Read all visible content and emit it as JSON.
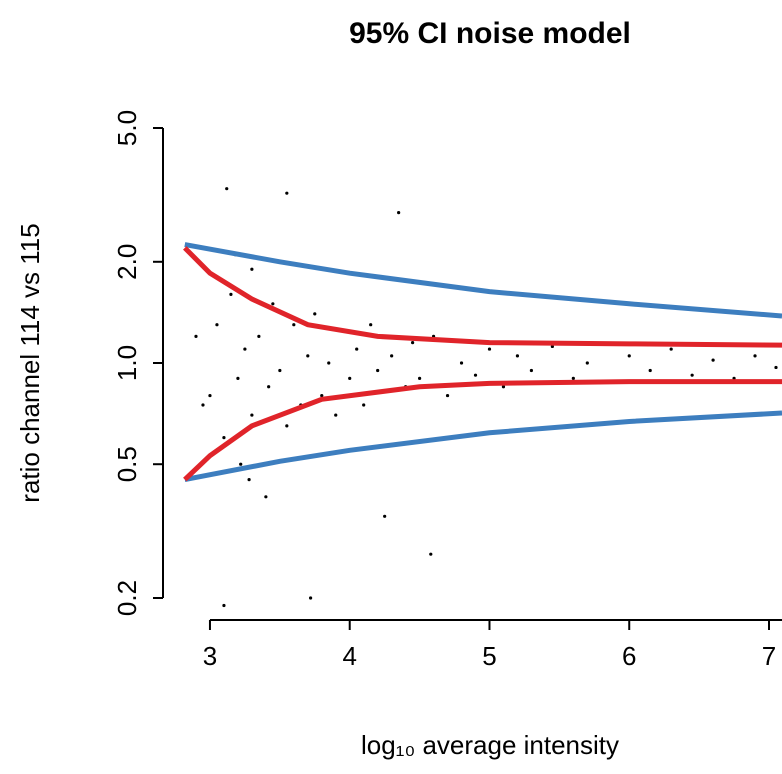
{
  "chart_data": {
    "type": "scatter",
    "title": "95% CI noise model",
    "xlabel": "log₁₀ average intensity",
    "ylabel": "ratio channel 114 vs 115",
    "xlim": [
      2.664,
      7.093
    ],
    "ylim": [
      0.2,
      5
    ],
    "ylog": true,
    "xticks": [
      3,
      4,
      5,
      6,
      7
    ],
    "yticks": [
      0.2,
      0.5,
      {
        "value": 1,
        "label": "1.0"
      },
      {
        "value": 2,
        "label": "2.0"
      },
      {
        "value": 5,
        "label": "5.0"
      }
    ],
    "points": {
      "color": "#000000",
      "x": [
        3.0,
        3.05,
        3.1,
        3.12,
        3.15,
        3.2,
        3.22,
        3.25,
        3.3,
        3.3,
        3.35,
        3.4,
        3.42,
        3.45,
        3.5,
        3.55,
        3.55,
        3.6,
        3.65,
        3.7,
        3.72,
        3.75,
        3.8,
        3.85,
        3.9,
        3.95,
        4.0,
        4.05,
        4.1,
        4.15,
        4.2,
        4.25,
        4.3,
        4.35,
        4.4,
        4.45,
        4.5,
        4.6,
        4.7,
        4.8,
        4.9,
        5.0,
        5.1,
        5.2,
        5.3,
        5.45,
        5.6,
        5.7,
        5.85,
        6.0,
        6.15,
        6.3,
        6.45,
        6.6,
        6.75,
        6.9,
        7.05,
        2.9,
        2.95,
        3.18,
        3.28,
        4.58,
        3.1
      ],
      "y": [
        0.8,
        1.3,
        0.6,
        3.3,
        1.6,
        0.9,
        0.5,
        1.1,
        0.7,
        1.9,
        1.2,
        0.4,
        0.85,
        1.5,
        0.95,
        3.2,
        0.65,
        1.3,
        0.75,
        1.05,
        0.2,
        1.4,
        0.8,
        1.0,
        0.7,
        1.25,
        0.9,
        1.1,
        0.75,
        1.3,
        0.95,
        0.35,
        1.05,
        2.8,
        0.85,
        1.15,
        0.9,
        1.2,
        0.8,
        1.0,
        0.92,
        1.1,
        0.85,
        1.05,
        0.95,
        1.12,
        0.9,
        1.0,
        0.88,
        1.05,
        0.95,
        1.1,
        0.92,
        1.02,
        0.9,
        1.05,
        0.97,
        1.2,
        0.75,
        2.1,
        0.45,
        0.27,
        0.19
      ]
    },
    "lines": [
      {
        "color": "#3d7ebf",
        "x": [
          2.82,
          3.5,
          4,
          5,
          6,
          7.093
        ],
        "values": [
          2.25,
          2.0,
          1.85,
          1.63,
          1.5,
          1.38
        ]
      },
      {
        "color": "#3d7ebf",
        "x": [
          2.82,
          3.5,
          4,
          5,
          6,
          7.093
        ],
        "values": [
          0.45,
          0.51,
          0.55,
          0.62,
          0.67,
          0.71
        ]
      },
      {
        "color": "#e0242a",
        "x": [
          2.82,
          3.0,
          3.3,
          3.7,
          4.2,
          5,
          6,
          7.093
        ],
        "values": [
          2.2,
          1.85,
          1.55,
          1.3,
          1.2,
          1.15,
          1.14,
          1.13
        ]
      },
      {
        "color": "#e0242a",
        "x": [
          2.82,
          3.0,
          3.3,
          3.8,
          4.5,
          5,
          6,
          7.093
        ],
        "values": [
          0.45,
          0.53,
          0.65,
          0.78,
          0.85,
          0.87,
          0.88,
          0.88
        ]
      }
    ]
  }
}
